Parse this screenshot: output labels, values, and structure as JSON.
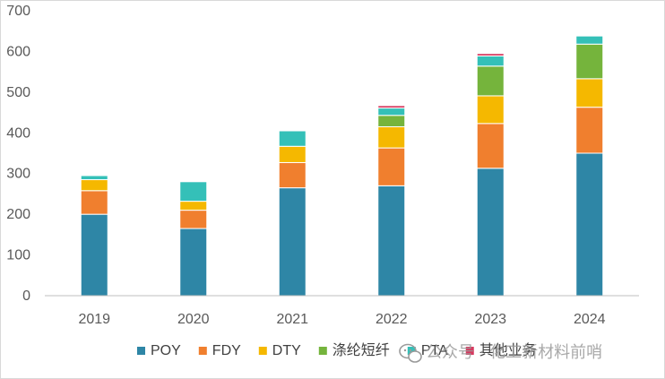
{
  "chart_data": {
    "type": "bar",
    "stacked": true,
    "categories": [
      "2019",
      "2020",
      "2021",
      "2022",
      "2023",
      "2024"
    ],
    "series": [
      {
        "name": "POY",
        "color": "#2e86a6",
        "values": [
          200,
          165,
          265,
          270,
          313,
          350
        ]
      },
      {
        "name": "FDY",
        "color": "#f07f2e",
        "values": [
          58,
          45,
          62,
          93,
          110,
          113
        ]
      },
      {
        "name": "DTY",
        "color": "#f5b800",
        "values": [
          27,
          22,
          40,
          52,
          68,
          70
        ]
      },
      {
        "name": "涤纶短纤",
        "color": "#75b43c",
        "values": [
          0,
          0,
          0,
          28,
          73,
          85
        ]
      },
      {
        "name": "PTA",
        "color": "#34c0b8",
        "values": [
          10,
          48,
          38,
          18,
          25,
          20
        ]
      },
      {
        "name": "其他业务",
        "color": "#d6395f",
        "values": [
          0,
          0,
          0,
          6,
          6,
          0
        ]
      }
    ],
    "ylim": [
      0,
      700
    ],
    "yticks": [
      0,
      100,
      200,
      300,
      400,
      500,
      600,
      700
    ],
    "title": "",
    "xlabel": "",
    "ylabel": "",
    "grid": false,
    "legend_position": "bottom-right"
  },
  "watermark": {
    "icon": "wechat-icon",
    "text": "公众号 · 化工新材料前哨"
  }
}
